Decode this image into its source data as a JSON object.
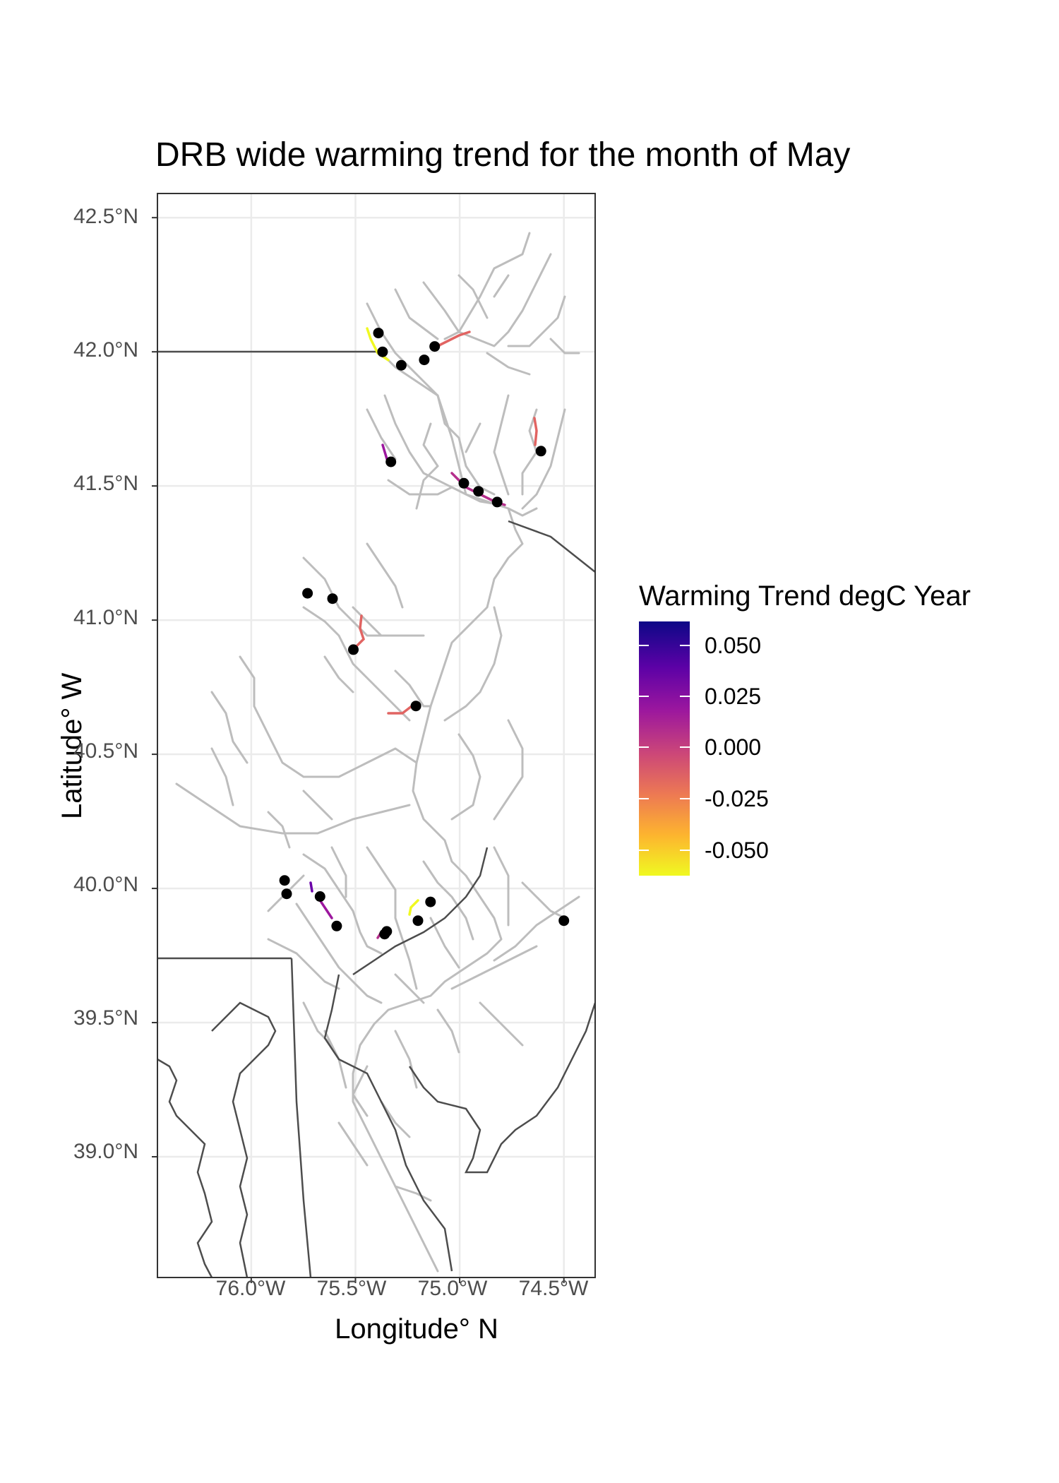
{
  "title": "DRB wide warming trend for the month of May",
  "x_axis": {
    "label": "Longitude° N",
    "ticks": [
      "76.0°W",
      "75.5°W",
      "75.0°W",
      "74.5°W"
    ]
  },
  "y_axis": {
    "label": "Latitude° W",
    "ticks": [
      "42.5°N",
      "42.0°N",
      "41.5°N",
      "41.0°N",
      "40.5°N",
      "40.0°N",
      "39.5°N",
      "39.0°N"
    ]
  },
  "legend": {
    "title": "Warming Trend degC Year",
    "labels": [
      "0.050",
      "0.025",
      "0.000",
      "-0.025",
      "-0.050"
    ],
    "colors": [
      "#0d0887",
      "#5c01a6",
      "#9c179e",
      "#cc4778",
      "#ed7953",
      "#fdb42f",
      "#f0f921"
    ]
  },
  "chart_data": {
    "type": "map",
    "title": "DRB wide warming trend for the month of May",
    "xlabel": "Longitude° N",
    "ylabel": "Latitude° W",
    "xlim": [
      -76.45,
      -74.35
    ],
    "ylim": [
      38.55,
      42.59
    ],
    "color_scale": {
      "min": -0.065,
      "max": 0.058
    },
    "sites": [
      {
        "lon": -75.39,
        "lat": 42.07,
        "trend": -0.06
      },
      {
        "lon": -75.37,
        "lat": 42.0,
        "trend": -0.04
      },
      {
        "lon": -75.28,
        "lat": 41.95,
        "trend": -0.02
      },
      {
        "lon": -75.17,
        "lat": 41.97,
        "trend": -0.02
      },
      {
        "lon": -75.12,
        "lat": 42.02,
        "trend": -0.02
      },
      {
        "lon": -74.61,
        "lat": 41.63,
        "trend": -0.02
      },
      {
        "lon": -75.33,
        "lat": 41.59,
        "trend": 0.03
      },
      {
        "lon": -74.98,
        "lat": 41.51,
        "trend": 0.01
      },
      {
        "lon": -74.91,
        "lat": 41.48,
        "trend": 0.01
      },
      {
        "lon": -74.82,
        "lat": 41.44,
        "trend": 0.0
      },
      {
        "lon": -75.73,
        "lat": 41.1,
        "trend": -0.02
      },
      {
        "lon": -75.61,
        "lat": 41.08,
        "trend": -0.02
      },
      {
        "lon": -75.51,
        "lat": 40.89,
        "trend": -0.02
      },
      {
        "lon": -75.21,
        "lat": 40.68,
        "trend": -0.02
      },
      {
        "lon": -75.84,
        "lat": 40.03,
        "trend": 0.05
      },
      {
        "lon": -75.83,
        "lat": 39.98,
        "trend": 0.04
      },
      {
        "lon": -75.67,
        "lat": 39.97,
        "trend": 0.02
      },
      {
        "lon": -75.59,
        "lat": 39.86,
        "trend": 0.01
      },
      {
        "lon": -75.36,
        "lat": 39.83,
        "trend": 0.0
      },
      {
        "lon": -75.35,
        "lat": 39.84,
        "trend": 0.0
      },
      {
        "lon": -75.2,
        "lat": 39.88,
        "trend": -0.05
      },
      {
        "lon": -75.14,
        "lat": 39.95,
        "trend": -0.06
      },
      {
        "lon": -74.5,
        "lat": 39.88,
        "trend": 0.0
      }
    ]
  }
}
